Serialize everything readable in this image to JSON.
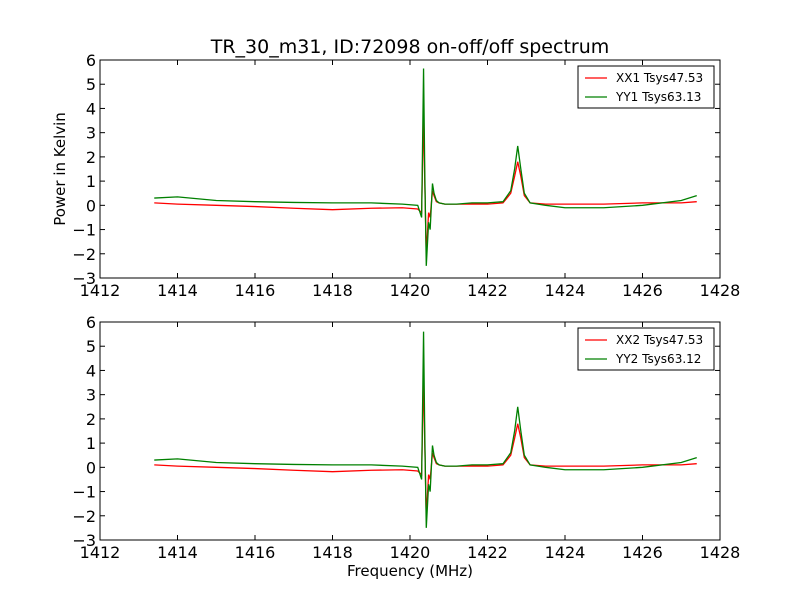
{
  "figure": {
    "title": "TR_30_m31, ID:72098 on-off/off spectrum",
    "xlabel": "Frequency (MHz)",
    "ylabel": "Power in Kelvin"
  },
  "chart_data": [
    {
      "type": "line",
      "title": "TR_30_m31, ID:72098 on-off/off spectrum",
      "xlabel": "",
      "ylabel": "Power in Kelvin",
      "xlim": [
        1412,
        1428
      ],
      "ylim": [
        -3,
        6
      ],
      "xticks": [
        "1412",
        "1414",
        "1416",
        "1418",
        "1420",
        "1422",
        "1424",
        "1426",
        "1428"
      ],
      "yticks": [
        "−3",
        "−2",
        "−1",
        "0",
        "1",
        "2",
        "3",
        "4",
        "5",
        "6"
      ],
      "grid": false,
      "legend": "top-right",
      "x": [
        1413.4,
        1414.0,
        1415.0,
        1416.0,
        1417.0,
        1418.0,
        1419.0,
        1419.8,
        1420.2,
        1420.3,
        1420.35,
        1420.38,
        1420.42,
        1420.48,
        1420.52,
        1420.58,
        1420.62,
        1420.68,
        1420.75,
        1420.9,
        1421.2,
        1421.6,
        1422.0,
        1422.4,
        1422.6,
        1422.7,
        1422.78,
        1422.86,
        1422.95,
        1423.1,
        1423.5,
        1424.0,
        1425.0,
        1426.0,
        1427.0,
        1427.4
      ],
      "series": [
        {
          "name": "XX1 Tsys47.53",
          "color": "#ff0000",
          "values": [
            0.1,
            0.05,
            0.0,
            -0.05,
            -0.12,
            -0.18,
            -0.12,
            -0.1,
            -0.15,
            -0.3,
            3.9,
            1.0,
            -2.0,
            -0.3,
            -0.5,
            0.6,
            0.4,
            0.15,
            0.1,
            0.05,
            0.05,
            0.05,
            0.05,
            0.1,
            0.5,
            1.2,
            1.8,
            1.2,
            0.4,
            0.1,
            0.05,
            0.05,
            0.05,
            0.1,
            0.1,
            0.15
          ]
        },
        {
          "name": "YY1 Tsys63.13",
          "color": "#008000",
          "values": [
            0.3,
            0.35,
            0.2,
            0.15,
            0.12,
            0.1,
            0.1,
            0.05,
            0.0,
            -0.5,
            5.65,
            1.5,
            -2.5,
            -0.7,
            -1.0,
            0.9,
            0.5,
            0.2,
            0.1,
            0.05,
            0.05,
            0.1,
            0.1,
            0.15,
            0.6,
            1.5,
            2.45,
            1.5,
            0.5,
            0.1,
            0.0,
            -0.1,
            -0.1,
            0.0,
            0.2,
            0.4
          ]
        }
      ]
    },
    {
      "type": "line",
      "title": "",
      "xlabel": "Frequency (MHz)",
      "ylabel": "",
      "xlim": [
        1412,
        1428
      ],
      "ylim": [
        -3,
        6
      ],
      "xticks": [
        "1412",
        "1414",
        "1416",
        "1418",
        "1420",
        "1422",
        "1424",
        "1426",
        "1428"
      ],
      "yticks": [
        "−3",
        "−2",
        "−1",
        "0",
        "1",
        "2",
        "3",
        "4",
        "5",
        "6"
      ],
      "grid": false,
      "legend": "top-right",
      "x": [
        1413.4,
        1414.0,
        1415.0,
        1416.0,
        1417.0,
        1418.0,
        1419.0,
        1419.8,
        1420.2,
        1420.3,
        1420.35,
        1420.38,
        1420.42,
        1420.48,
        1420.52,
        1420.58,
        1420.62,
        1420.68,
        1420.75,
        1420.9,
        1421.2,
        1421.6,
        1422.0,
        1422.4,
        1422.6,
        1422.7,
        1422.78,
        1422.86,
        1422.95,
        1423.1,
        1423.5,
        1424.0,
        1425.0,
        1426.0,
        1427.0,
        1427.4
      ],
      "series": [
        {
          "name": "XX2 Tsys47.53",
          "color": "#ff0000",
          "values": [
            0.1,
            0.05,
            0.0,
            -0.05,
            -0.12,
            -0.18,
            -0.12,
            -0.1,
            -0.15,
            -0.3,
            3.9,
            1.0,
            -2.0,
            -0.3,
            -0.5,
            0.6,
            0.4,
            0.15,
            0.1,
            0.05,
            0.05,
            0.05,
            0.05,
            0.1,
            0.5,
            1.2,
            1.8,
            1.2,
            0.4,
            0.1,
            0.05,
            0.05,
            0.05,
            0.1,
            0.1,
            0.15
          ]
        },
        {
          "name": "YY2 Tsys63.12",
          "color": "#008000",
          "values": [
            0.3,
            0.35,
            0.2,
            0.15,
            0.12,
            0.1,
            0.1,
            0.05,
            0.0,
            -0.5,
            5.6,
            1.5,
            -2.5,
            -0.7,
            -1.0,
            0.9,
            0.5,
            0.2,
            0.1,
            0.05,
            0.05,
            0.1,
            0.1,
            0.15,
            0.6,
            1.5,
            2.5,
            1.5,
            0.5,
            0.1,
            0.0,
            -0.1,
            -0.1,
            0.0,
            0.2,
            0.4
          ]
        }
      ]
    }
  ]
}
